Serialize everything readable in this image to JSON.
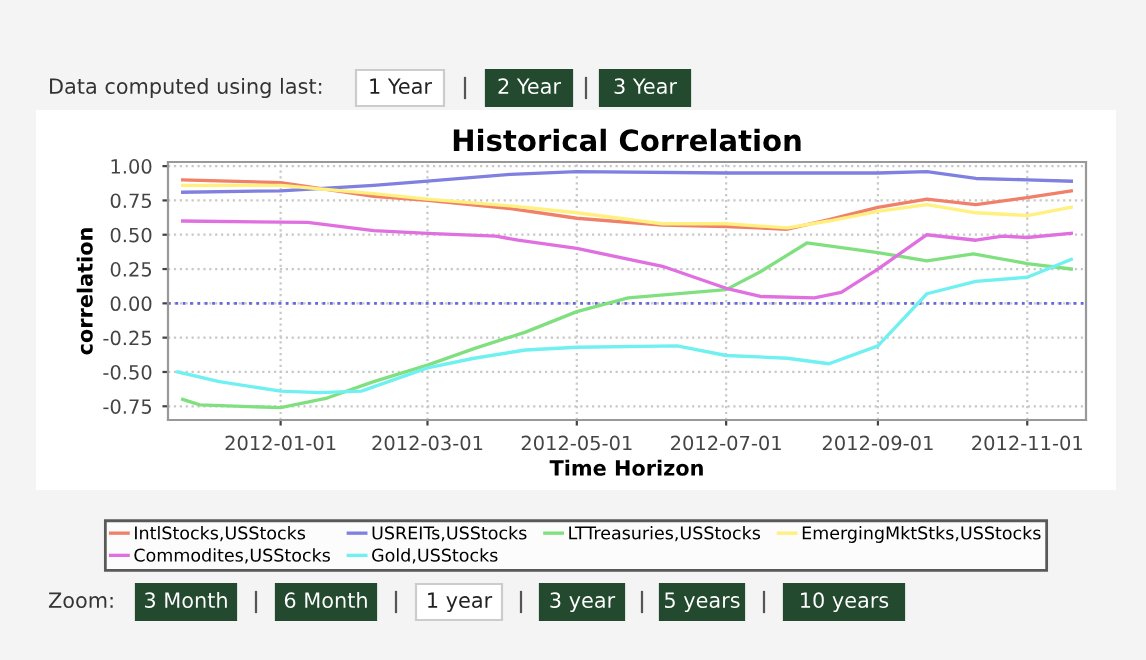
{
  "chart_data": {
    "type": "line",
    "title": "Historical Correlation",
    "xlabel": "Time Horizon",
    "ylabel": "correlation",
    "xlim": [
      "2011-11-16",
      "2012-11-25"
    ],
    "ylim": [
      -0.85,
      1.03
    ],
    "xticks": [
      {
        "value": "2012-01-01",
        "label": "2012-01-01"
      },
      {
        "value": "2012-03-01",
        "label": "2012-03-01"
      },
      {
        "value": "2012-05-01",
        "label": "2012-05-01"
      },
      {
        "value": "2012-07-01",
        "label": "2012-07-01"
      },
      {
        "value": "2012-09-01",
        "label": "2012-09-01"
      },
      {
        "value": "2012-11-01",
        "label": "2012-11-01"
      }
    ],
    "yticks": [
      {
        "value": -0.75,
        "label": "-0.75"
      },
      {
        "value": -0.5,
        "label": "-0.50"
      },
      {
        "value": -0.25,
        "label": "-0.25"
      },
      {
        "value": 0,
        "label": "0.00"
      },
      {
        "value": 0.25,
        "label": "0.25"
      },
      {
        "value": 0.5,
        "label": "0.50"
      },
      {
        "value": 0.75,
        "label": "0.75"
      },
      {
        "value": 1,
        "label": "1.00"
      }
    ],
    "grid": true,
    "legend": "bottom",
    "marker": "none",
    "line_style": "solid",
    "ref_lines": [
      {
        "axis": "y",
        "value": 0,
        "label": null,
        "color": "#6666dd",
        "line_style": "dotted"
      }
    ],
    "annotations": [
      "Data computed using last:",
      "1 Year",
      "2 Year",
      "3 Year",
      "Zoom:",
      "3 Month",
      "6 Month",
      "1 year",
      "3 year",
      "5 years",
      "10 years"
    ],
    "series": [
      {
        "name": "IntlStocks,USStocks",
        "color": "#f0806a",
        "x": [
          "2011-11-22",
          "2012-01-01",
          "2012-02-08",
          "2012-03-01",
          "2012-04-04",
          "2012-05-01",
          "2012-06-05",
          "2012-07-01",
          "2012-07-26",
          "2012-08-12",
          "2012-09-01",
          "2012-09-21",
          "2012-10-11",
          "2012-11-01",
          "2012-11-19"
        ],
        "values": [
          0.9,
          0.88,
          0.78,
          0.75,
          0.69,
          0.62,
          0.57,
          0.56,
          0.54,
          0.61,
          0.7,
          0.76,
          0.72,
          0.77,
          0.82
        ]
      },
      {
        "name": "USREITs,USStocks",
        "color": "#8080e0",
        "x": [
          "2011-11-22",
          "2012-01-01",
          "2012-02-08",
          "2012-03-01",
          "2012-04-04",
          "2012-05-01",
          "2012-07-01",
          "2012-09-01",
          "2012-09-21",
          "2012-10-11",
          "2012-11-01",
          "2012-11-19"
        ],
        "values": [
          0.81,
          0.82,
          0.86,
          0.89,
          0.94,
          0.96,
          0.95,
          0.95,
          0.96,
          0.91,
          0.9,
          0.89
        ]
      },
      {
        "name": "LTTreasuries,USStocks",
        "color": "#80e080",
        "x": [
          "2011-11-22",
          "2011-11-29",
          "2012-01-01",
          "2012-01-20",
          "2012-02-08",
          "2012-03-01",
          "2012-03-20",
          "2012-04-10",
          "2012-05-01",
          "2012-05-22",
          "2012-07-01",
          "2012-07-15",
          "2012-08-03",
          "2012-09-01",
          "2012-09-21",
          "2012-10-10",
          "2012-11-01",
          "2012-11-19"
        ],
        "values": [
          -0.7,
          -0.74,
          -0.76,
          -0.69,
          -0.57,
          -0.45,
          -0.33,
          -0.21,
          -0.06,
          0.04,
          0.1,
          0.23,
          0.44,
          0.37,
          0.31,
          0.36,
          0.29,
          0.25
        ]
      },
      {
        "name": "EmergingMktStks,USStocks",
        "color": "#fff080",
        "x": [
          "2011-11-22",
          "2012-01-01",
          "2012-02-08",
          "2012-03-01",
          "2012-04-04",
          "2012-05-01",
          "2012-06-05",
          "2012-07-01",
          "2012-07-26",
          "2012-08-12",
          "2012-09-01",
          "2012-09-21",
          "2012-10-11",
          "2012-11-01",
          "2012-11-19"
        ],
        "values": [
          0.86,
          0.86,
          0.8,
          0.76,
          0.71,
          0.66,
          0.58,
          0.58,
          0.55,
          0.6,
          0.67,
          0.72,
          0.66,
          0.64,
          0.7
        ]
      },
      {
        "name": "Commodites,USStocks",
        "color": "#e070e0",
        "x": [
          "2011-11-22",
          "2012-01-12",
          "2012-02-08",
          "2012-03-01",
          "2012-03-29",
          "2012-04-07",
          "2012-05-01",
          "2012-06-05",
          "2012-07-01",
          "2012-07-15",
          "2012-08-06",
          "2012-08-17",
          "2012-09-01",
          "2012-09-21",
          "2012-10-11",
          "2012-10-22",
          "2012-11-01",
          "2012-11-19"
        ],
        "values": [
          0.6,
          0.59,
          0.53,
          0.51,
          0.49,
          0.46,
          0.4,
          0.27,
          0.11,
          0.05,
          0.04,
          0.08,
          0.25,
          0.5,
          0.46,
          0.49,
          0.48,
          0.51
        ]
      },
      {
        "name": "Gold,USStocks",
        "color": "#70f0f0",
        "x": [
          "2011-11-20",
          "2011-12-07",
          "2012-01-01",
          "2012-01-17",
          "2012-02-03",
          "2012-03-01",
          "2012-03-20",
          "2012-04-10",
          "2012-05-01",
          "2012-06-11",
          "2012-07-01",
          "2012-07-26",
          "2012-08-12",
          "2012-09-01",
          "2012-09-21",
          "2012-10-11",
          "2012-11-01",
          "2012-11-19"
        ],
        "values": [
          -0.5,
          -0.57,
          -0.64,
          -0.65,
          -0.64,
          -0.47,
          -0.4,
          -0.34,
          -0.32,
          -0.31,
          -0.38,
          -0.4,
          -0.44,
          -0.31,
          0.07,
          0.16,
          0.19,
          0.32
        ]
      }
    ]
  }
}
